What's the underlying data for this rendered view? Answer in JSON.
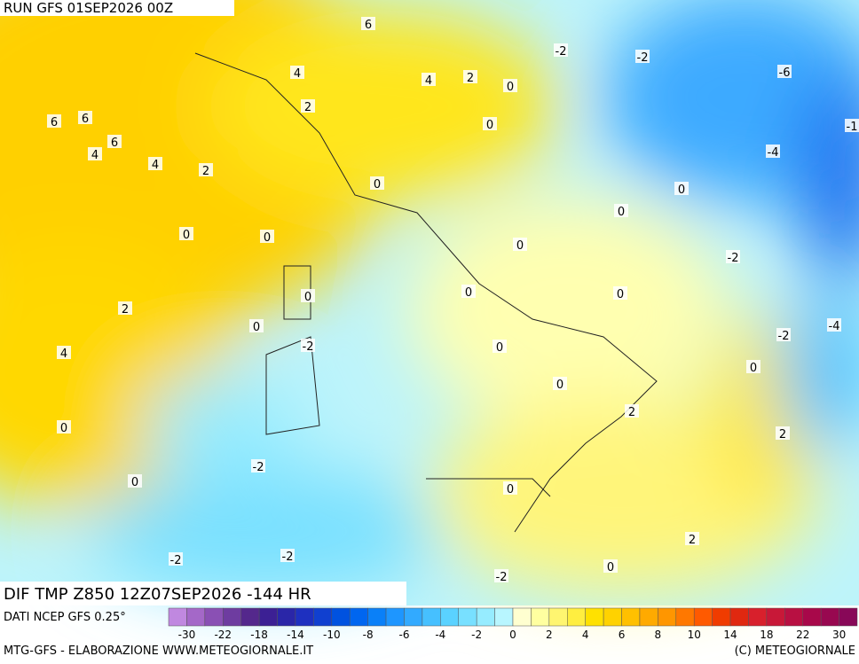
{
  "header": {
    "run": "RUN GFS 01SEP2026 00Z"
  },
  "field": {
    "title": "DIF TMP Z850 12Z07SEP2026 -144 HR",
    "source": "DATI NCEP GFS 0.25°"
  },
  "contour_labels": [
    6,
    6,
    6,
    6,
    4,
    4,
    4,
    4,
    2,
    2,
    2,
    0,
    0,
    0,
    -2,
    -2,
    -6,
    -4,
    -1,
    0,
    0,
    0,
    0,
    0,
    -2,
    2,
    0,
    0,
    0,
    -2,
    4,
    -4,
    0,
    -2,
    0,
    0,
    0,
    2,
    2,
    0,
    -2,
    0,
    0,
    -2,
    -2,
    2,
    0,
    -2
  ],
  "colorbar": {
    "ticks": [
      -30,
      -22,
      -18,
      -14,
      -10,
      -8,
      -6,
      -4,
      -2,
      0,
      2,
      4,
      6,
      8,
      10,
      14,
      18,
      22,
      30
    ],
    "colors": [
      "#c088e0",
      "#a468c8",
      "#8a50b4",
      "#6e3ca0",
      "#54288c",
      "#3c2094",
      "#2a26a8",
      "#1e30c0",
      "#1040d0",
      "#0052e0",
      "#0066f0",
      "#0a80f8",
      "#1e96ff",
      "#32aaff",
      "#46c0ff",
      "#5ad2ff",
      "#78e0ff",
      "#96ecff",
      "#b8f6ff",
      "#ffffd0",
      "#ffffa0",
      "#fff570",
      "#ffee40",
      "#ffe100",
      "#ffd200",
      "#ffc000",
      "#ffaa00",
      "#ff9600",
      "#ff7800",
      "#ff5a00",
      "#f03c00",
      "#e02810",
      "#d8202c",
      "#c81838",
      "#b81042",
      "#a8084a",
      "#980850",
      "#880858"
    ]
  },
  "footer": {
    "left": "MTG-GFS - ELABORAZIONE WWW.METEOGIORNALE.IT",
    "right": "(C) METEOGIORNALE"
  }
}
